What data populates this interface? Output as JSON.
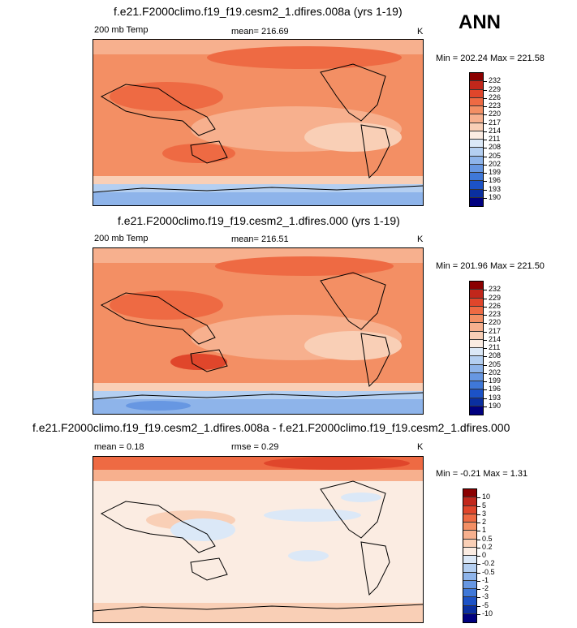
{
  "season": "ANN",
  "panels": [
    {
      "title": "f.e21.F2000climo.f19_f19.cesm2_1.dfires.008a (yrs 1-19)",
      "left_label": "200 mb Temp",
      "center_label": "mean= 216.69",
      "units": "K",
      "minmax": "Min = 202.24 Max = 221.58",
      "levels": [
        "232",
        "229",
        "226",
        "223",
        "220",
        "217",
        "214",
        "211",
        "208",
        "205",
        "202",
        "199",
        "196",
        "193",
        "190"
      ],
      "colors": [
        "#8b0000",
        "#c1271b",
        "#e0462b",
        "#ee6a43",
        "#f38f64",
        "#f7b08e",
        "#f9cfb6",
        "#fbece2",
        "#dbe8f7",
        "#b4cff1",
        "#8eb4ea",
        "#6797e2",
        "#3f78d8",
        "#1c52c6",
        "#0a2fa0",
        "#00007f"
      ]
    },
    {
      "title": "f.e21.F2000climo.f19_f19.cesm2_1.dfires.000 (yrs 1-19)",
      "left_label": "200 mb Temp",
      "center_label": "mean= 216.51",
      "units": "K",
      "minmax": "Min = 201.96 Max = 221.50",
      "levels": [
        "232",
        "229",
        "226",
        "223",
        "220",
        "217",
        "214",
        "211",
        "208",
        "205",
        "202",
        "199",
        "196",
        "193",
        "190"
      ],
      "colors": [
        "#8b0000",
        "#c1271b",
        "#e0462b",
        "#ee6a43",
        "#f38f64",
        "#f7b08e",
        "#f9cfb6",
        "#fbece2",
        "#dbe8f7",
        "#b4cff1",
        "#8eb4ea",
        "#6797e2",
        "#3f78d8",
        "#1c52c6",
        "#0a2fa0",
        "#00007f"
      ]
    },
    {
      "title": "f.e21.F2000climo.f19_f19.cesm2_1.dfires.008a - f.e21.F2000climo.f19_f19.cesm2_1.dfires.000",
      "left_label": "mean =  0.18",
      "center_label": "rmse =  0.29",
      "units": "K",
      "minmax": "Min =  -0.21 Max =  1.31",
      "levels": [
        "10",
        "5",
        "3",
        "2",
        "1",
        "0.5",
        "0.2",
        "0",
        "-0.2",
        "-0.5",
        "-1",
        "-2",
        "-3",
        "-5",
        "-10"
      ],
      "colors": [
        "#8b0000",
        "#c1271b",
        "#e0462b",
        "#ee6a43",
        "#f38f64",
        "#f7b08e",
        "#f9cfb6",
        "#fbece2",
        "#dbe8f7",
        "#b4cff1",
        "#8eb4ea",
        "#6797e2",
        "#3f78d8",
        "#1c52c6",
        "#0a2fa0",
        "#00007f"
      ]
    }
  ],
  "chart_data": [
    {
      "type": "heatmap",
      "title": "f.e21.F2000climo.f19_f19.cesm2_1.dfires.008a (yrs 1-19)",
      "variable": "200 mb Temp",
      "units": "K",
      "mean": 216.69,
      "min": 202.24,
      "max": 221.58,
      "contour_levels": [
        190,
        193,
        196,
        199,
        202,
        205,
        208,
        211,
        214,
        217,
        220,
        223,
        226,
        229,
        232
      ]
    },
    {
      "type": "heatmap",
      "title": "f.e21.F2000climo.f19_f19.cesm2_1.dfires.000 (yrs 1-19)",
      "variable": "200 mb Temp",
      "units": "K",
      "mean": 216.51,
      "min": 201.96,
      "max": 221.5,
      "contour_levels": [
        190,
        193,
        196,
        199,
        202,
        205,
        208,
        211,
        214,
        217,
        220,
        223,
        226,
        229,
        232
      ]
    },
    {
      "type": "heatmap",
      "title": "f.e21.F2000climo.f19_f19.cesm2_1.dfires.008a - f.e21.F2000climo.f19_f19.cesm2_1.dfires.000",
      "units": "K",
      "mean": 0.18,
      "rmse": 0.29,
      "min": -0.21,
      "max": 1.31,
      "contour_levels": [
        -10,
        -5,
        -3,
        -2,
        -1,
        -0.5,
        -0.2,
        0,
        0.2,
        0.5,
        1,
        2,
        3,
        5,
        10
      ]
    }
  ]
}
